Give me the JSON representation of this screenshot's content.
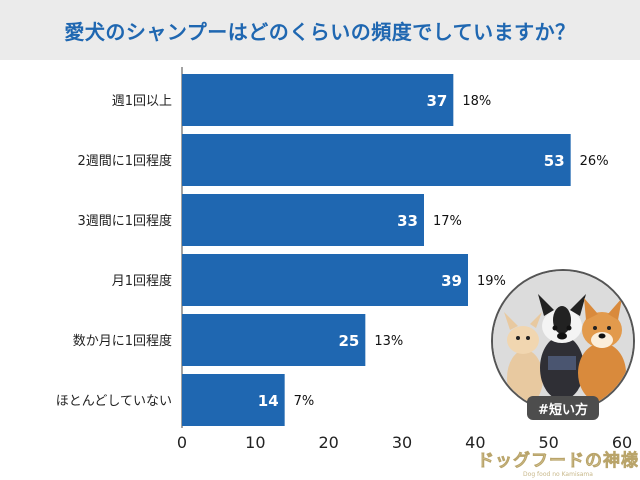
{
  "header": {
    "title": "愛犬のシャンプーはどのくらいの頻度でしていますか？"
  },
  "chart_data": {
    "type": "bar",
    "orientation": "horizontal",
    "title": "愛犬のシャンプーはどのくらいの頻度でしていますか？",
    "categories": [
      "週1回以上",
      "2週間に1回程度",
      "3週間に1回程度",
      "月1回程度",
      "数か月に1回程度",
      "ほとんどしていない"
    ],
    "values": [
      37,
      53,
      33,
      39,
      25,
      14
    ],
    "percent_labels": [
      "18%",
      "26%",
      "17%",
      "19%",
      "13%",
      "7%"
    ],
    "xlim": [
      0,
      60
    ],
    "x_ticks": [
      "0",
      "10",
      "20",
      "30",
      "40",
      "50",
      "60"
    ],
    "grid": false,
    "bar_color": "#1f67b1"
  },
  "photo": {
    "badge_label": "#短い方"
  },
  "logo": {
    "text": "ドッグフードの神様",
    "subtext": "Dog food no Kamisama"
  },
  "colors": {
    "accent": "#1f67b1",
    "header_bg": "#ebebeb",
    "badge_bg": "#4d4d4d"
  }
}
